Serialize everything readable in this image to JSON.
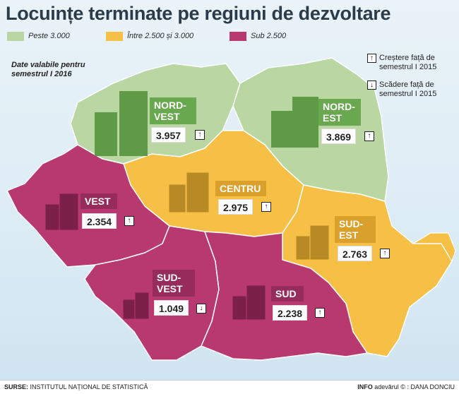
{
  "title": "Locuințe terminate pe regiuni de dezvoltare",
  "legend": [
    {
      "label": "Peste 3.000",
      "color": "#b9d6a3"
    },
    {
      "label": "Între 2.500 și 3.000",
      "color": "#f6bf45"
    },
    {
      "label": "Sub 2.500",
      "color": "#b8396f"
    }
  ],
  "date_note": "Date valabile pentru semestrul I 2016",
  "key": {
    "increase": "Creștere față de semestrul I 2015",
    "decrease": "Scădere față de semestrul I 2015"
  },
  "icons": {
    "up": "↑",
    "down": "↓"
  },
  "regions": [
    {
      "name": "NORD-VEST",
      "value": "3.957",
      "trend": "up"
    },
    {
      "name": "NORD-EST",
      "value": "3.869",
      "trend": "up"
    },
    {
      "name": "CENTRU",
      "value": "2.975",
      "trend": "up"
    },
    {
      "name": "VEST",
      "value": "2.354",
      "trend": "up"
    },
    {
      "name": "SUD-EST",
      "value": "2.763",
      "trend": "up"
    },
    {
      "name": "SUD-VEST",
      "value": "1.049",
      "trend": "down"
    },
    {
      "name": "SUD",
      "value": "2.238",
      "trend": "up"
    }
  ],
  "footer": {
    "source_label": "SURSE:",
    "source": "INSTITUTUL NAȚIONAL DE STATISTICĂ",
    "info_label": "INFO",
    "brand": "adevărul ©",
    "copyright": ":",
    "author": "DANA DONCIU"
  }
}
